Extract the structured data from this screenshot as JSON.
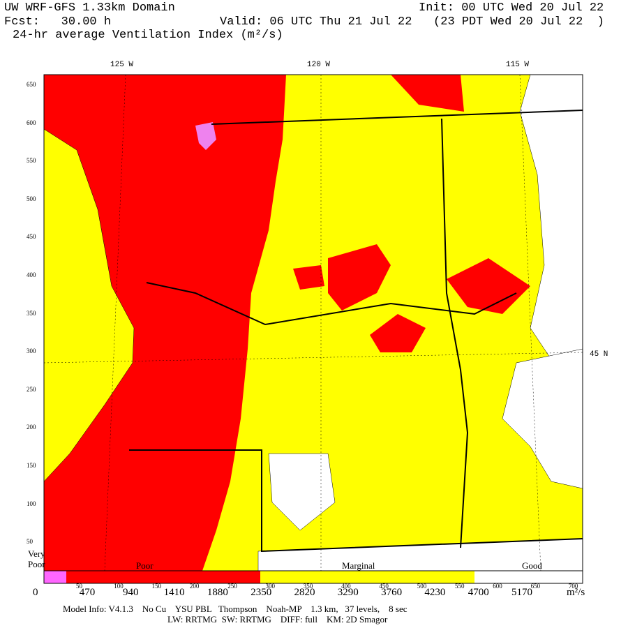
{
  "header": {
    "model": "UW WRF-GFS 1.33km Domain",
    "init": "Init: 00 UTC Wed 20 Jul 22",
    "fcst": "Fcst:   30.00 h",
    "valid": "Valid: 06 UTC Thu 21 Jul 22   (23 PDT Wed 20 Jul 22  )",
    "field": "24-hr average Ventilation Index (m²/s)"
  },
  "map": {
    "lon_labels": [
      "125 W",
      "120 W",
      "115 W"
    ],
    "lat_labels": [
      "45 N"
    ],
    "y_grid_labels": [
      "650",
      "600",
      "550",
      "500",
      "450",
      "400",
      "350",
      "300",
      "250",
      "200",
      "150",
      "100",
      "50"
    ],
    "x_grid_labels": [
      "50",
      "100",
      "150",
      "200",
      "250",
      "300",
      "350",
      "400",
      "450",
      "500",
      "550",
      "600",
      "650",
      "700"
    ]
  },
  "legend": {
    "categories": [
      "Very Poor",
      "Poor",
      "Marginal",
      "Good"
    ],
    "colorbar_labels": [
      "0",
      "470",
      "940",
      "1410",
      "1880",
      "2350",
      "2820",
      "3290",
      "3760",
      "4230",
      "4700",
      "5170"
    ],
    "unit": "m²/s"
  },
  "footer": {
    "line1": "Model Info: V4.1.3    No Cu    YSU PBL   Thompson    Noah-MP    1.3 km,   37 levels,    8 sec",
    "line2": "LW: RRTMG  SW: RRTMG    DIFF: full    KM: 2D Smagor"
  }
}
